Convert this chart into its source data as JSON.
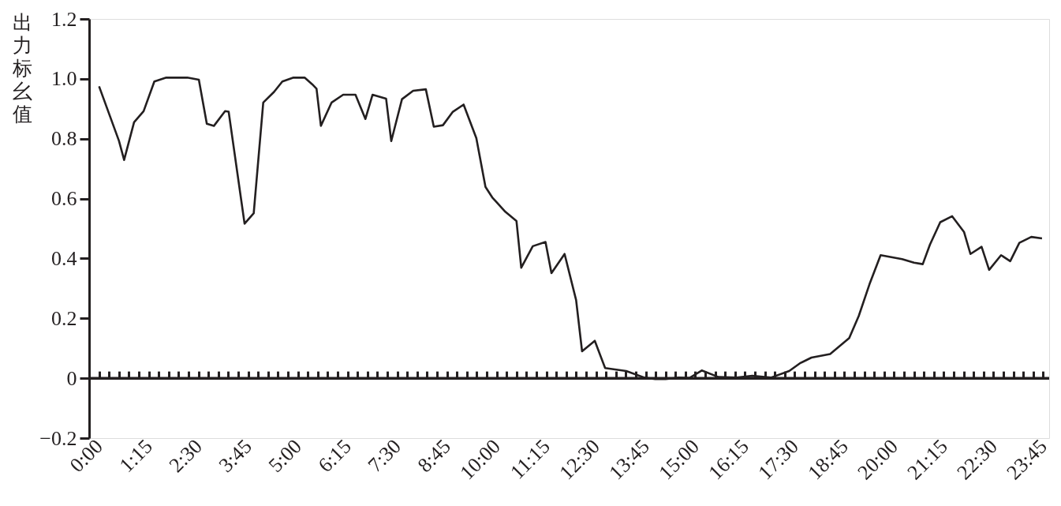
{
  "chart_data": {
    "type": "line",
    "ylabel": "出力标幺值",
    "x": [
      0,
      0.5,
      0.63,
      0.88,
      1.12,
      1.39,
      1.69,
      2.22,
      2.51,
      2.71,
      2.89,
      3.17,
      3.26,
      3.66,
      3.89,
      4.13,
      4.4,
      4.61,
      4.89,
      5.17,
      5.36,
      5.47,
      5.58,
      5.85,
      6.14,
      6.45,
      6.7,
      6.88,
      7.22,
      7.35,
      7.62,
      7.9,
      8.22,
      8.42,
      8.65,
      8.9,
      9.17,
      9.49,
      9.72,
      9.89,
      10.22,
      10.5,
      10.62,
      10.91,
      11.23,
      11.38,
      11.71,
      12.0,
      12.15,
      12.47,
      12.73,
      13.26,
      13.72,
      13.99,
      14.25,
      14.58,
      14.85,
      15.16,
      15.58,
      16.04,
      16.43,
      16.9,
      17.36,
      17.63,
      17.92,
      18.39,
      18.87,
      19.11,
      19.38,
      19.66,
      20.2,
      20.5,
      20.72,
      20.9,
      21.16,
      21.46,
      21.76,
      21.92,
      22.2,
      22.39,
      22.69,
      22.92,
      23.15,
      23.45,
      23.72
    ],
    "series": [
      {
        "color": "#231f20",
        "values": [
          0.975,
          0.793,
          0.729,
          0.855,
          0.892,
          0.991,
          1.004,
          1.004,
          0.997,
          0.85,
          0.843,
          0.892,
          0.89,
          0.516,
          0.551,
          0.921,
          0.956,
          0.991,
          1.004,
          1.004,
          0.982,
          0.967,
          0.843,
          0.921,
          0.947,
          0.947,
          0.866,
          0.947,
          0.934,
          0.792,
          0.932,
          0.96,
          0.965,
          0.84,
          0.845,
          0.89,
          0.914,
          0.802,
          0.639,
          0.604,
          0.556,
          0.525,
          0.369,
          0.441,
          0.455,
          0.351,
          0.415,
          0.261,
          0.09,
          0.125,
          0.034,
          0.024,
          0.002,
          -0.003,
          -0.003,
          0.002,
          0.001,
          0.026,
          0.004,
          0.002,
          0.008,
          0.002,
          0.024,
          0.05,
          0.069,
          0.081,
          0.134,
          0.208,
          0.314,
          0.411,
          0.398,
          0.386,
          0.381,
          0.446,
          0.521,
          0.541,
          0.488,
          0.415,
          0.439,
          0.362,
          0.411,
          0.391,
          0.452,
          0.472,
          0.467
        ]
      }
    ],
    "xlim": [
      -0.25,
      23.9
    ],
    "xticks": [
      {
        "value": 0,
        "label": "0:00"
      },
      {
        "value": 0.25,
        "label": null
      },
      {
        "value": 0.5,
        "label": null
      },
      {
        "value": 0.75,
        "label": null
      },
      {
        "value": 1,
        "label": null
      },
      {
        "value": 1.25,
        "label": "1:15"
      },
      {
        "value": 1.5,
        "label": null
      },
      {
        "value": 1.75,
        "label": null
      },
      {
        "value": 2,
        "label": null
      },
      {
        "value": 2.25,
        "label": null
      },
      {
        "value": 2.5,
        "label": "2:30"
      },
      {
        "value": 2.75,
        "label": null
      },
      {
        "value": 3,
        "label": null
      },
      {
        "value": 3.25,
        "label": null
      },
      {
        "value": 3.5,
        "label": null
      },
      {
        "value": 3.75,
        "label": "3:45"
      },
      {
        "value": 4,
        "label": null
      },
      {
        "value": 4.25,
        "label": null
      },
      {
        "value": 4.5,
        "label": null
      },
      {
        "value": 4.75,
        "label": null
      },
      {
        "value": 5,
        "label": "5:00"
      },
      {
        "value": 5.25,
        "label": null
      },
      {
        "value": 5.5,
        "label": null
      },
      {
        "value": 5.75,
        "label": null
      },
      {
        "value": 6,
        "label": null
      },
      {
        "value": 6.25,
        "label": "6:15"
      },
      {
        "value": 6.5,
        "label": null
      },
      {
        "value": 6.75,
        "label": null
      },
      {
        "value": 7,
        "label": null
      },
      {
        "value": 7.25,
        "label": null
      },
      {
        "value": 7.5,
        "label": "7:30"
      },
      {
        "value": 7.75,
        "label": null
      },
      {
        "value": 8,
        "label": null
      },
      {
        "value": 8.25,
        "label": null
      },
      {
        "value": 8.5,
        "label": null
      },
      {
        "value": 8.75,
        "label": "8:45"
      },
      {
        "value": 9,
        "label": null
      },
      {
        "value": 9.25,
        "label": null
      },
      {
        "value": 9.5,
        "label": null
      },
      {
        "value": 9.75,
        "label": null
      },
      {
        "value": 10,
        "label": "10:00"
      },
      {
        "value": 10.25,
        "label": null
      },
      {
        "value": 10.5,
        "label": null
      },
      {
        "value": 10.75,
        "label": null
      },
      {
        "value": 11,
        "label": null
      },
      {
        "value": 11.25,
        "label": "11:15"
      },
      {
        "value": 11.5,
        "label": null
      },
      {
        "value": 11.75,
        "label": null
      },
      {
        "value": 12,
        "label": null
      },
      {
        "value": 12.25,
        "label": null
      },
      {
        "value": 12.5,
        "label": "12:30"
      },
      {
        "value": 12.75,
        "label": null
      },
      {
        "value": 13,
        "label": null
      },
      {
        "value": 13.25,
        "label": null
      },
      {
        "value": 13.5,
        "label": null
      },
      {
        "value": 13.75,
        "label": "13:45"
      },
      {
        "value": 14,
        "label": null
      },
      {
        "value": 14.25,
        "label": null
      },
      {
        "value": 14.5,
        "label": null
      },
      {
        "value": 14.75,
        "label": null
      },
      {
        "value": 15,
        "label": "15:00"
      },
      {
        "value": 15.25,
        "label": null
      },
      {
        "value": 15.5,
        "label": null
      },
      {
        "value": 15.75,
        "label": null
      },
      {
        "value": 16,
        "label": null
      },
      {
        "value": 16.25,
        "label": "16:15"
      },
      {
        "value": 16.5,
        "label": null
      },
      {
        "value": 16.75,
        "label": null
      },
      {
        "value": 17,
        "label": null
      },
      {
        "value": 17.25,
        "label": null
      },
      {
        "value": 17.5,
        "label": "17:30"
      },
      {
        "value": 17.75,
        "label": null
      },
      {
        "value": 18,
        "label": null
      },
      {
        "value": 18.25,
        "label": null
      },
      {
        "value": 18.5,
        "label": null
      },
      {
        "value": 18.75,
        "label": "18:45"
      },
      {
        "value": 19,
        "label": null
      },
      {
        "value": 19.25,
        "label": null
      },
      {
        "value": 19.5,
        "label": null
      },
      {
        "value": 19.75,
        "label": null
      },
      {
        "value": 20,
        "label": "20:00"
      },
      {
        "value": 20.25,
        "label": null
      },
      {
        "value": 20.5,
        "label": null
      },
      {
        "value": 20.75,
        "label": null
      },
      {
        "value": 21,
        "label": null
      },
      {
        "value": 21.25,
        "label": "21:15"
      },
      {
        "value": 21.5,
        "label": null
      },
      {
        "value": 21.75,
        "label": null
      },
      {
        "value": 22,
        "label": null
      },
      {
        "value": 22.25,
        "label": null
      },
      {
        "value": 22.5,
        "label": "22:30"
      },
      {
        "value": 22.75,
        "label": null
      },
      {
        "value": 23,
        "label": null
      },
      {
        "value": 23.25,
        "label": null
      },
      {
        "value": 23.5,
        "label": null
      },
      {
        "value": 23.75,
        "label": "23:45"
      }
    ],
    "ylim": [
      -0.2,
      1.2
    ],
    "yticks": [
      {
        "value": -0.2,
        "label": "−0.2"
      },
      0,
      0.2,
      0.4,
      0.6,
      0.8,
      {
        "value": 1,
        "label": "1.0"
      },
      1.2
    ],
    "ref_lines": [
      {
        "axis": "y",
        "value": 0,
        "label": null
      }
    ],
    "grid": false,
    "marker": "none",
    "line_style": "solid"
  }
}
